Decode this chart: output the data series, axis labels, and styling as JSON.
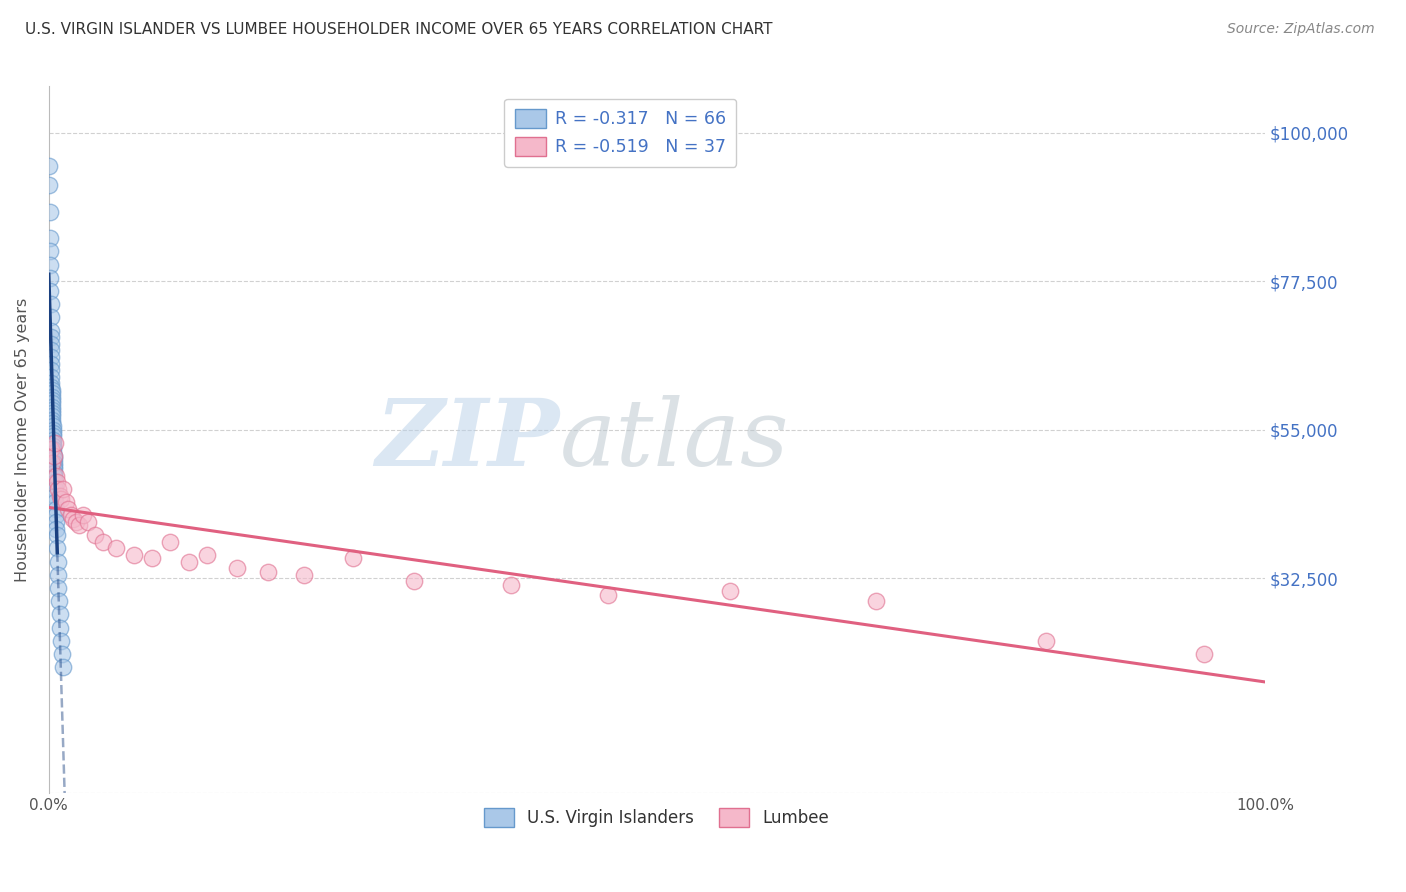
{
  "title": "U.S. VIRGIN ISLANDER VS LUMBEE HOUSEHOLDER INCOME OVER 65 YEARS CORRELATION CHART",
  "source": "Source: ZipAtlas.com",
  "ylabel": "Householder Income Over 65 years",
  "xlim": [
    0.0,
    1.0
  ],
  "ylim": [
    0,
    107000
  ],
  "background_color": "#ffffff",
  "grid_color": "#cccccc",
  "title_color": "#333333",
  "axis_label_color": "#555555",
  "right_tick_color": "#4472c4",
  "scatter_blue_facecolor": "#aac8e8",
  "scatter_blue_edgecolor": "#6699cc",
  "scatter_pink_facecolor": "#f5b8ca",
  "scatter_pink_edgecolor": "#e07090",
  "line_blue_color": "#1a4080",
  "line_pink_color": "#e06080",
  "legend_text_color": "#4472c4",
  "watermark_zip_color": "#c5d8ee",
  "watermark_atlas_color": "#c0c8d0",
  "blue_scatter_x": [
    0.0005,
    0.0005,
    0.0008,
    0.001,
    0.001,
    0.0012,
    0.0013,
    0.0013,
    0.0015,
    0.0015,
    0.0016,
    0.0017,
    0.0018,
    0.0018,
    0.0019,
    0.002,
    0.002,
    0.0021,
    0.0022,
    0.0022,
    0.0023,
    0.0024,
    0.0024,
    0.0025,
    0.0025,
    0.0026,
    0.0027,
    0.0028,
    0.0028,
    0.0029,
    0.003,
    0.0031,
    0.0032,
    0.0033,
    0.0034,
    0.0035,
    0.0036,
    0.0037,
    0.0038,
    0.0039,
    0.004,
    0.0041,
    0.0042,
    0.0043,
    0.0044,
    0.0045,
    0.0046,
    0.0048,
    0.005,
    0.0052,
    0.0054,
    0.0056,
    0.0058,
    0.006,
    0.0062,
    0.0064,
    0.0068,
    0.0072,
    0.0076,
    0.008,
    0.0085,
    0.009,
    0.0095,
    0.01,
    0.011,
    0.012
  ],
  "blue_scatter_y": [
    95000,
    92000,
    88000,
    84000,
    82000,
    80000,
    78000,
    76000,
    74000,
    72000,
    70000,
    69000,
    68000,
    67000,
    66000,
    65000,
    64000,
    63000,
    62000,
    61500,
    61000,
    60500,
    60000,
    59500,
    59000,
    58500,
    58000,
    57500,
    57000,
    56500,
    56000,
    55500,
    55000,
    54500,
    54000,
    53500,
    53000,
    52500,
    52000,
    51500,
    51000,
    50500,
    50000,
    49500,
    49000,
    48500,
    48000,
    47000,
    46000,
    45000,
    44000,
    43000,
    42000,
    41000,
    40000,
    39000,
    37000,
    35000,
    33000,
    31000,
    29000,
    27000,
    25000,
    23000,
    21000,
    19000
  ],
  "pink_scatter_x": [
    0.002,
    0.003,
    0.004,
    0.005,
    0.006,
    0.007,
    0.008,
    0.009,
    0.01,
    0.012,
    0.014,
    0.016,
    0.018,
    0.02,
    0.022,
    0.025,
    0.028,
    0.032,
    0.038,
    0.045,
    0.055,
    0.07,
    0.085,
    0.1,
    0.115,
    0.13,
    0.155,
    0.18,
    0.21,
    0.25,
    0.3,
    0.38,
    0.46,
    0.56,
    0.68,
    0.82,
    0.95
  ],
  "pink_scatter_y": [
    52000,
    50000,
    51000,
    53000,
    48000,
    47000,
    46000,
    45000,
    44500,
    46000,
    44000,
    43000,
    42000,
    41500,
    41000,
    40500,
    42000,
    41000,
    39000,
    38000,
    37000,
    36000,
    35500,
    38000,
    35000,
    36000,
    34000,
    33500,
    33000,
    35500,
    32000,
    31500,
    30000,
    30500,
    29000,
    23000,
    21000
  ]
}
